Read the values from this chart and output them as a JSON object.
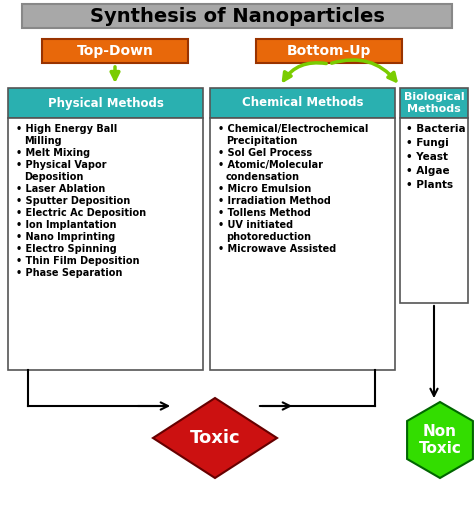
{
  "title": "Synthesis of Nanoparticles",
  "title_bg": "#a8a8a8",
  "top_down_label": "Top-Down",
  "bottom_up_label": "Bottom-Up",
  "orange_color": "#e8680a",
  "green_color": "#7acc00",
  "teal_color": "#2ab0b0",
  "physical_header": "Physical Methods",
  "physical_items": [
    "High Energy Ball\nMilling",
    "Melt Mixing",
    "Physical Vapor\nDeposition",
    "Laser Ablation",
    "Sputter Deposition",
    "Electric Ac Deposition",
    "Ion Implantation",
    "Nano Imprinting",
    "Electro Spinning",
    "Thin Film Deposition",
    "Phase Separation"
  ],
  "chemical_header": "Chemical Methods",
  "chemical_items": [
    "Chemical/Electrochemical\nPrecipitation",
    "Sol Gel Process",
    "Atomic/Molecular\ncondensation",
    "Micro Emulsion",
    "Irradiation Method",
    "Tollens Method",
    "UV initiated\nphotoreduction",
    "Microwave Assisted"
  ],
  "biological_header": "Biological\nMethods",
  "biological_items": [
    "Bacteria",
    "Fungi",
    "Yeast",
    "Algae",
    "Plants"
  ],
  "toxic_label": "Toxic",
  "toxic_color": "#cc1111",
  "non_toxic_label": "Non\nToxic",
  "non_toxic_color": "#33dd00",
  "bg_color": "#ffffff",
  "box_border": "#555555",
  "arrow_color": "#000000"
}
